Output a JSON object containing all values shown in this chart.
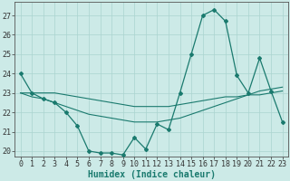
{
  "xlabel": "Humidex (Indice chaleur)",
  "x": [
    0,
    1,
    2,
    3,
    4,
    5,
    6,
    7,
    8,
    9,
    10,
    11,
    12,
    13,
    14,
    15,
    16,
    17,
    18,
    19,
    20,
    21,
    22,
    23
  ],
  "line1": [
    24,
    23,
    22.7,
    22.5,
    22,
    21.3,
    20,
    19.9,
    19.9,
    19.8,
    20.7,
    20.1,
    21.4,
    21.1,
    23,
    25,
    27,
    27.3,
    26.7,
    23.9,
    23,
    24.8,
    23.1,
    21.5
  ],
  "line2": [
    23,
    22.8,
    22.7,
    22.5,
    22.3,
    22.1,
    21.9,
    21.8,
    21.7,
    21.6,
    21.5,
    21.5,
    21.5,
    21.6,
    21.7,
    21.9,
    22.1,
    22.3,
    22.5,
    22.7,
    22.9,
    23.1,
    23.2,
    23.3
  ],
  "line3": [
    23,
    23,
    23,
    23,
    22.9,
    22.8,
    22.7,
    22.6,
    22.5,
    22.4,
    22.3,
    22.3,
    22.3,
    22.3,
    22.4,
    22.5,
    22.6,
    22.7,
    22.8,
    22.8,
    22.9,
    22.9,
    23.0,
    23.1
  ],
  "line_color": "#1a7a6e",
  "bg_color": "#cceae7",
  "grid_color": "#aad4d0",
  "ylim": [
    19.7,
    27.7
  ],
  "yticks": [
    20,
    21,
    22,
    23,
    24,
    25,
    26,
    27
  ],
  "xticks": [
    0,
    1,
    2,
    3,
    4,
    5,
    6,
    7,
    8,
    9,
    10,
    11,
    12,
    13,
    14,
    15,
    16,
    17,
    18,
    19,
    20,
    21,
    22,
    23
  ],
  "xlabel_fontsize": 7,
  "tick_fontsize": 6
}
